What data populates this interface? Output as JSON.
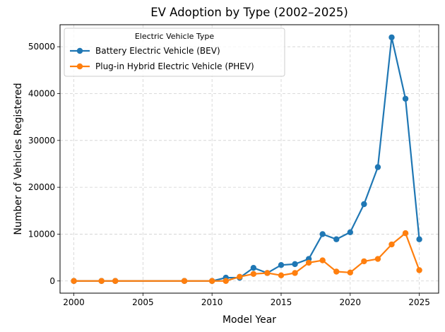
{
  "chart_data": {
    "type": "line",
    "title": "EV Adoption by Type (2002–2025)",
    "xlabel": "Model Year",
    "ylabel": "Number of Vehicles Registered",
    "xlim": [
      1999,
      2026.4
    ],
    "ylim": [
      -2600,
      54700
    ],
    "xticks": [
      2000,
      2005,
      2010,
      2015,
      2020,
      2025
    ],
    "yticks": [
      0,
      10000,
      20000,
      30000,
      40000,
      50000
    ],
    "grid": true,
    "legend": {
      "title": "Electric Vehicle Type",
      "placement": "top-left"
    },
    "series": [
      {
        "name": "Battery Electric Vehicle (BEV)",
        "color": "#1f77b4",
        "x": [
          2000,
          2002,
          2003,
          2008,
          2010,
          2011,
          2012,
          2013,
          2014,
          2015,
          2016,
          2017,
          2018,
          2019,
          2020,
          2021,
          2022,
          2023,
          2024,
          2025
        ],
        "y": [
          0,
          0,
          0,
          0,
          0,
          700,
          700,
          2800,
          1700,
          3400,
          3600,
          4700,
          10000,
          8900,
          10400,
          16400,
          24300,
          52000,
          38900,
          8900
        ]
      },
      {
        "name": "Plug-in Hybrid Electric Vehicle (PHEV)",
        "color": "#ff7f0e",
        "x": [
          2000,
          2002,
          2003,
          2008,
          2010,
          2011,
          2012,
          2013,
          2014,
          2015,
          2016,
          2017,
          2018,
          2019,
          2020,
          2021,
          2022,
          2023,
          2024,
          2025
        ],
        "y": [
          0,
          0,
          0,
          0,
          0,
          0,
          900,
          1500,
          1700,
          1200,
          1700,
          3900,
          4400,
          2000,
          1800,
          4200,
          4700,
          7800,
          10200,
          2300
        ]
      }
    ]
  }
}
